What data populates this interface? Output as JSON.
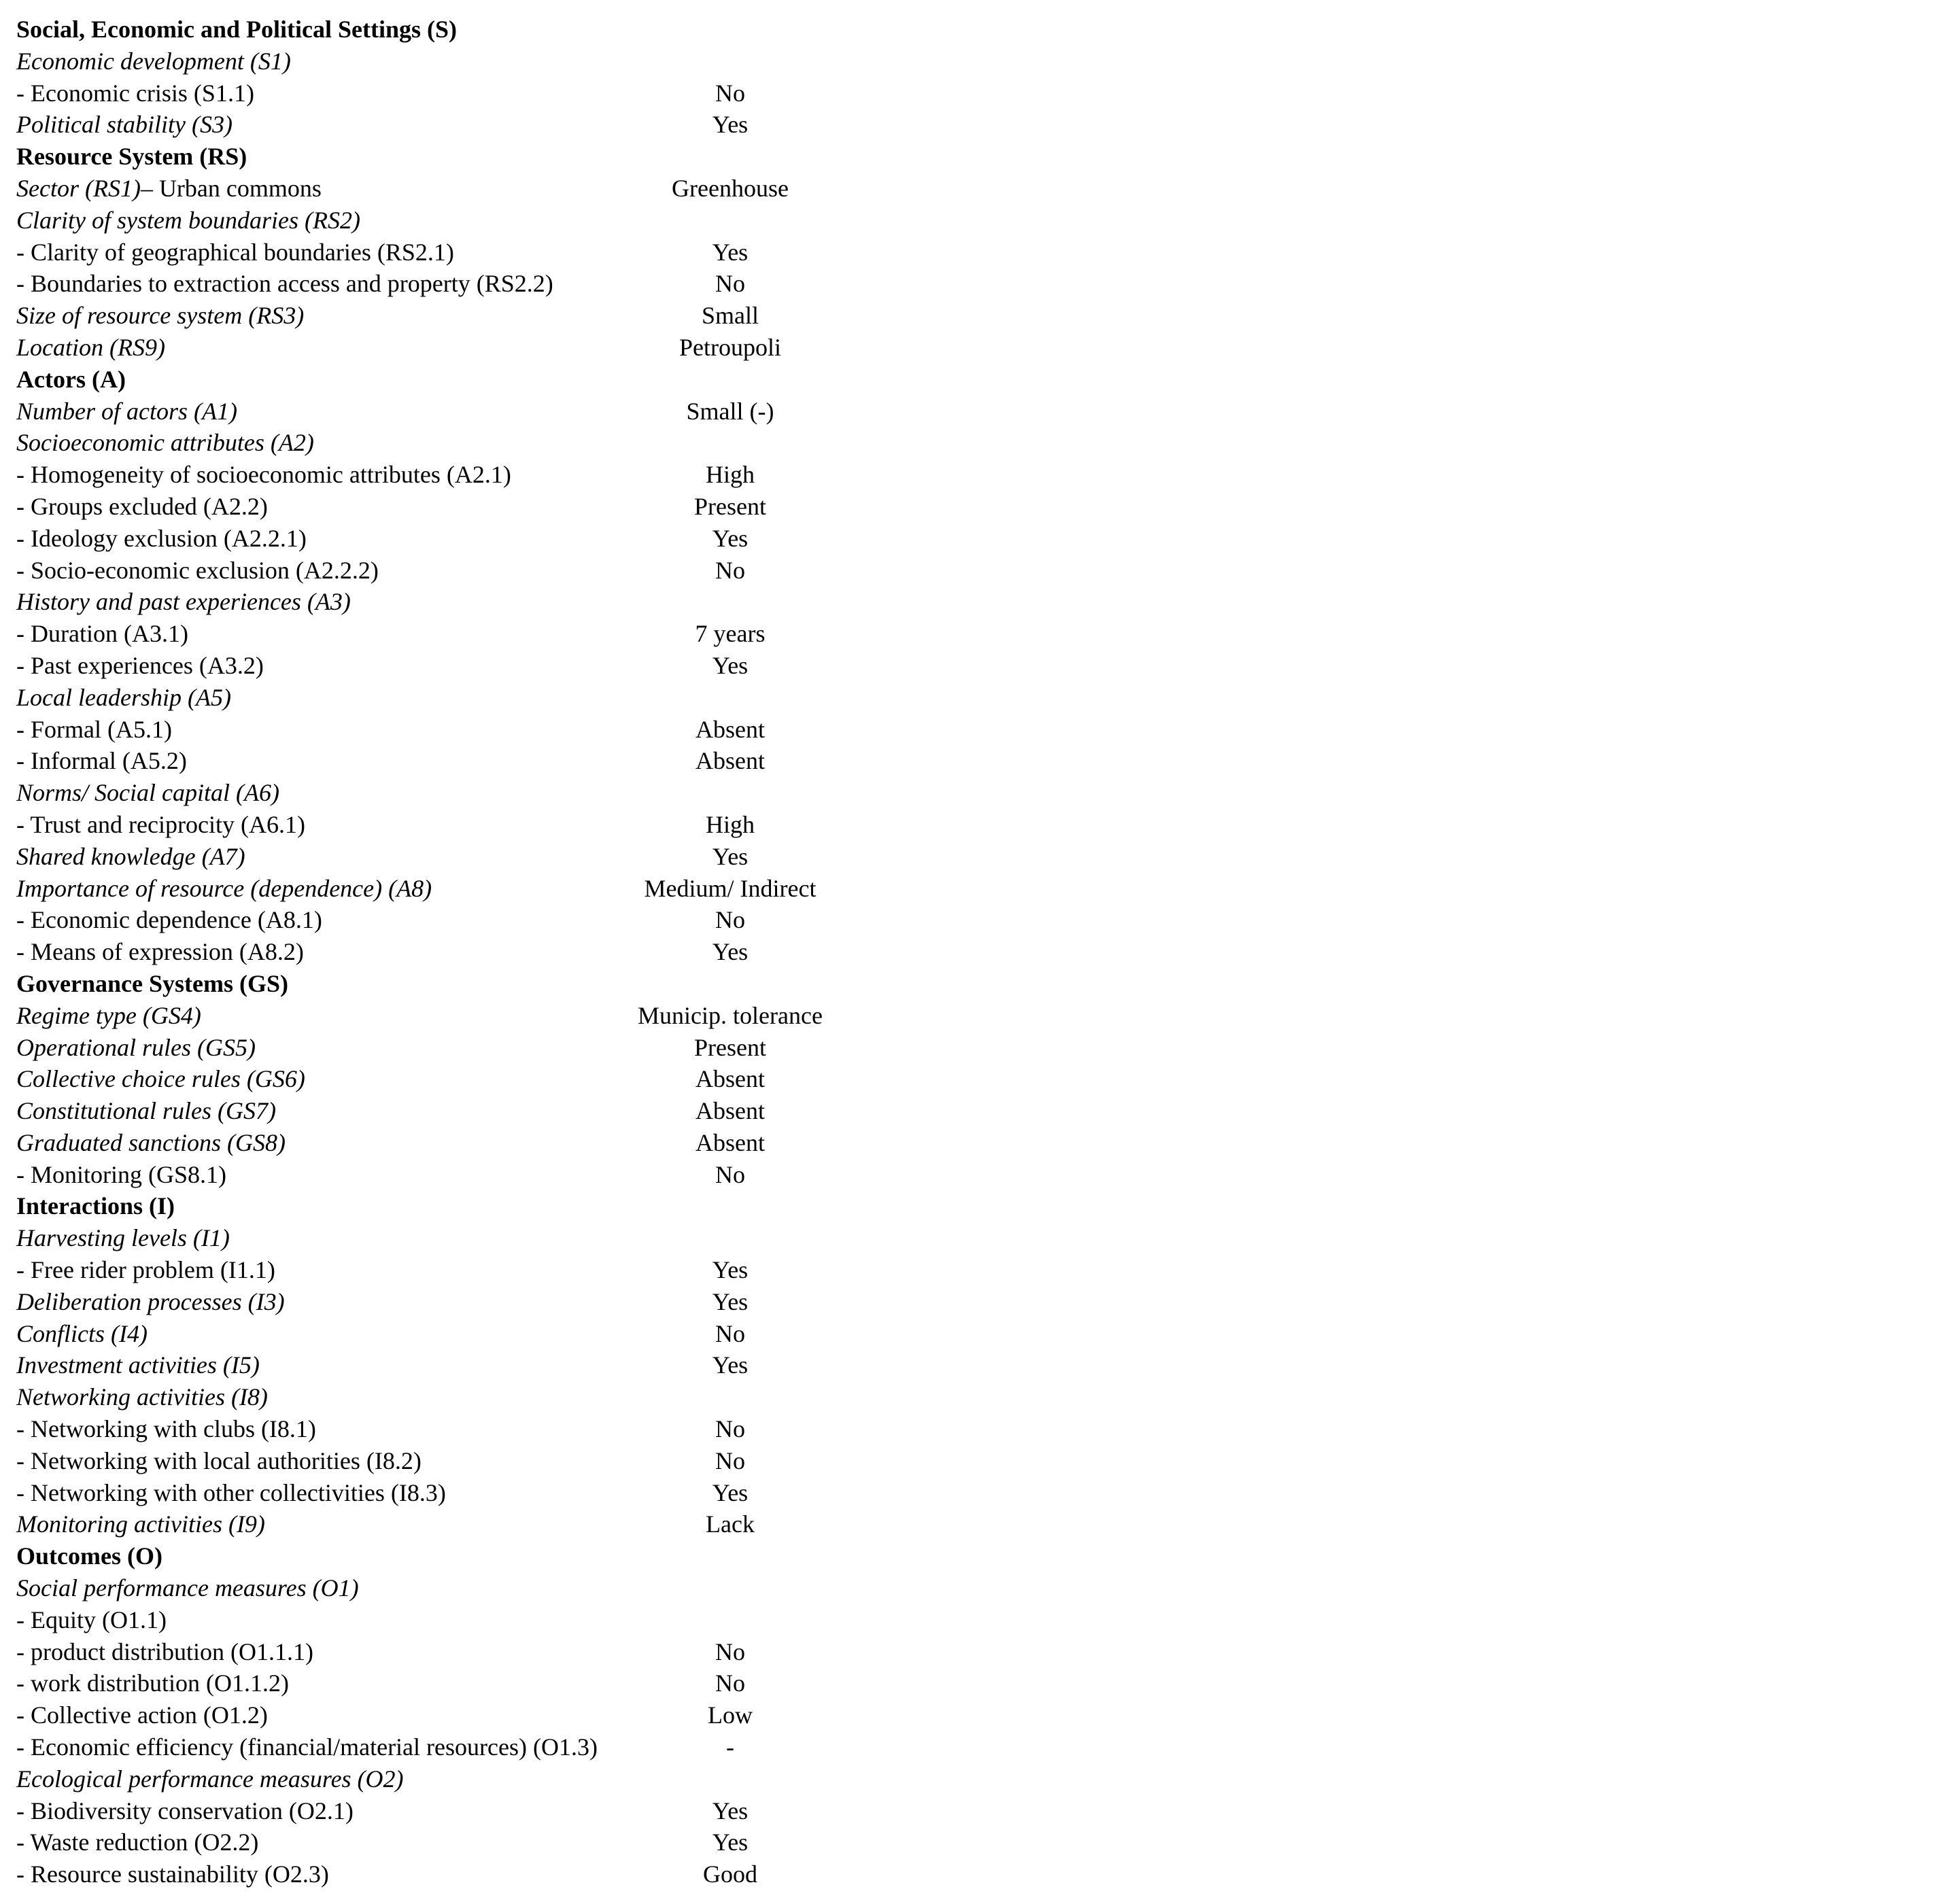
{
  "rows": [
    {
      "style": "bold",
      "label": "Social, Economic and Political Settings (S)",
      "value": ""
    },
    {
      "style": "italic",
      "label": "Economic development (S1)",
      "value": ""
    },
    {
      "style": "normal",
      "label": "- Economic crisis (S1.1)",
      "value": "No"
    },
    {
      "style": "italic",
      "label": "Political stability (S3)",
      "value": "Yes"
    },
    {
      "style": "bold",
      "label": "Resource System (RS)",
      "value": ""
    },
    {
      "style": "sector",
      "label_italic": "Sector (RS1)",
      "label_rest": "– Urban commons",
      "value": "Greenhouse"
    },
    {
      "style": "italic",
      "label": "Clarity of system boundaries (RS2)",
      "value": ""
    },
    {
      "style": "normal",
      "label": "- Clarity of geographical boundaries (RS2.1)",
      "value": "Yes"
    },
    {
      "style": "normal",
      "label": "- Boundaries to extraction access and property (RS2.2)",
      "value": "No"
    },
    {
      "style": "italic",
      "label": "Size of resource system (RS3)",
      "value": "Small"
    },
    {
      "style": "italic",
      "label": "Location (RS9)",
      "value": "Petroupoli"
    },
    {
      "style": "bold",
      "label": "Actors (A)",
      "value": ""
    },
    {
      "style": "italic",
      "label": "Number of actors (A1)",
      "value": "Small (-)"
    },
    {
      "style": "italic",
      "label": "Socioeconomic attributes (A2)",
      "value": ""
    },
    {
      "style": "normal",
      "label": "- Homogeneity of socioeconomic attributes (A2.1)",
      "value": "High"
    },
    {
      "style": "normal",
      "label": "- Groups excluded (A2.2)",
      "value": "Present"
    },
    {
      "style": "normal",
      "label": "- Ideology exclusion (A2.2.1)",
      "value": "Yes"
    },
    {
      "style": "normal",
      "label": "- Socio-economic exclusion (A2.2.2)",
      "value": "No"
    },
    {
      "style": "italic",
      "label": "History and past experiences (A3)",
      "value": ""
    },
    {
      "style": "normal",
      "label": "- Duration (A3.1)",
      "value": "7 years"
    },
    {
      "style": "normal",
      "label": "- Past experiences (A3.2)",
      "value": "Yes"
    },
    {
      "style": "italic",
      "label": "Local leadership (A5)",
      "value": ""
    },
    {
      "style": "normal",
      "label": "- Formal (A5.1)",
      "value": "Absent"
    },
    {
      "style": "normal",
      "label": "- Informal (A5.2)",
      "value": "Absent"
    },
    {
      "style": "italic",
      "label": "Norms/ Social capital (A6)",
      "value": ""
    },
    {
      "style": "normal",
      "label": "- Trust and reciprocity (A6.1)",
      "value": "High"
    },
    {
      "style": "italic",
      "label": "Shared knowledge (A7)",
      "value": "Yes"
    },
    {
      "style": "italic",
      "label": "Importance of resource (dependence) (A8)",
      "value": "Medium/ Indirect"
    },
    {
      "style": "normal",
      "label": "- Economic dependence (A8.1)",
      "value": "No"
    },
    {
      "style": "normal",
      "label": "- Means of expression (A8.2)",
      "value": "Yes"
    },
    {
      "style": "bold",
      "label": "Governance Systems (GS)",
      "value": ""
    },
    {
      "style": "italic",
      "label": "Regime type (GS4)",
      "value": "Municip. tolerance"
    },
    {
      "style": "italic",
      "label": "Operational rules (GS5)",
      "value": "Present"
    },
    {
      "style": "italic",
      "label": "Collective choice rules (GS6)",
      "value": "Absent"
    },
    {
      "style": "italic",
      "label": "Constitutional rules (GS7)",
      "value": "Absent"
    },
    {
      "style": "italic",
      "label": "Graduated sanctions (GS8)",
      "value": "Absent"
    },
    {
      "style": "normal",
      "label": "- Monitoring (GS8.1)",
      "value": "No"
    },
    {
      "style": "bold",
      "label": "Interactions (I)",
      "value": ""
    },
    {
      "style": "italic",
      "label": "Harvesting levels (I1)",
      "value": ""
    },
    {
      "style": "normal",
      "label": "- Free rider problem (I1.1)",
      "value": "Yes"
    },
    {
      "style": "italic",
      "label": "Deliberation processes (I3)",
      "value": "Yes"
    },
    {
      "style": "italic",
      "label": "Conflicts (I4)",
      "value": "No"
    },
    {
      "style": "italic",
      "label": "Investment activities (I5)",
      "value": "Yes"
    },
    {
      "style": "italic",
      "label": "Networking activities (I8)",
      "value": ""
    },
    {
      "style": "normal",
      "label": "- Networking with clubs (I8.1)",
      "value": "No"
    },
    {
      "style": "normal",
      "label": "- Networking with local authorities (I8.2)",
      "value": "No"
    },
    {
      "style": "normal",
      "label": "- Networking with other collectivities (I8.3)",
      "value": "Yes"
    },
    {
      "style": "italic",
      "label": "Monitoring activities (I9)",
      "value": "Lack"
    },
    {
      "style": "bold",
      "label": "Outcomes (O)",
      "value": ""
    },
    {
      "style": "italic",
      "label": "Social performance measures (O1)",
      "value": ""
    },
    {
      "style": "normal",
      "label": "- Equity (O1.1)",
      "value": ""
    },
    {
      "style": "normal",
      "label": "- product distribution (O1.1.1)",
      "value": "No"
    },
    {
      "style": "normal",
      "label": "- work distribution (O1.1.2)",
      "value": "No"
    },
    {
      "style": "normal",
      "label": "- Collective action (O1.2)",
      "value": "Low"
    },
    {
      "style": "normal",
      "label": "- Economic efficiency (financial/material resources) (O1.3)",
      "value": "-"
    },
    {
      "style": "italic",
      "label": "Ecological performance measures (O2)",
      "value": ""
    },
    {
      "style": "normal",
      "label": "- Biodiversity conservation (O2.1)",
      "value": "Yes"
    },
    {
      "style": "normal",
      "label": "- Waste reduction (O2.2)",
      "value": "Yes"
    },
    {
      "style": "normal",
      "label": "- Resource sustainability (O2.3)",
      "value": "Good"
    }
  ]
}
